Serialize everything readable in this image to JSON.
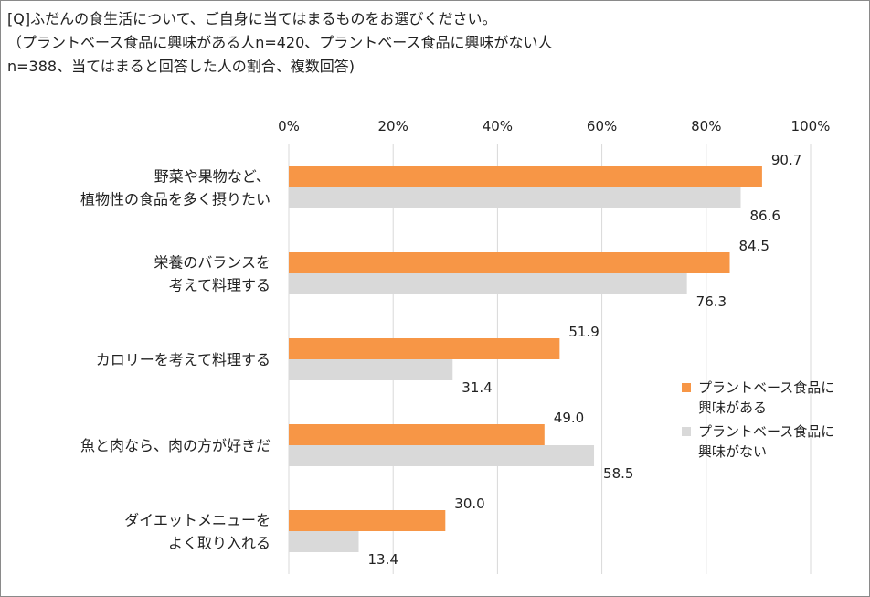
{
  "question": {
    "line1": "[Q]ふだんの食生活について、ご自身に当てはまるものをお選びください。",
    "line2": "（プラントベース食品に興味がある人n=420、プラントベース食品に興味がない人",
    "line3": "n=388、当てはまると回答した人の割合、複数回答)"
  },
  "colors": {
    "interested": "#F79646",
    "not_interested": "#D9D9D9",
    "grid": "#D9D9D9",
    "text": "#222222"
  },
  "chart_data": {
    "type": "bar",
    "orientation": "horizontal",
    "categories": [
      [
        "野菜や果物など、",
        "植物性の食品を多く摂りたい"
      ],
      [
        "栄養のバランスを",
        "考えて料理する"
      ],
      [
        "カロリーを考えて料理する"
      ],
      [
        "魚と肉なら、肉の方が好きだ"
      ],
      [
        "ダイエットメニューを",
        "よく取り入れる"
      ]
    ],
    "series": [
      {
        "name": "プラントベース食品に\n興味がある",
        "color": "#F79646",
        "values": [
          90.7,
          84.5,
          51.9,
          49.0,
          30.0
        ],
        "labels": [
          "90.7",
          "84.5",
          "51.9",
          "49.0",
          "30.0"
        ]
      },
      {
        "name": "プラントベース食品に\n興味がない",
        "color": "#D9D9D9",
        "values": [
          86.6,
          76.3,
          31.4,
          58.5,
          13.4
        ],
        "labels": [
          "86.6",
          "76.3",
          "31.4",
          "58.5",
          "13.4"
        ]
      }
    ],
    "xlim": [
      0,
      100
    ],
    "xticks": [
      0,
      20,
      40,
      60,
      80,
      100
    ],
    "xtick_labels": [
      "0%",
      "20%",
      "40%",
      "60%",
      "80%",
      "100%"
    ],
    "axis_position": "top",
    "grid": true,
    "legend_position": "right"
  }
}
